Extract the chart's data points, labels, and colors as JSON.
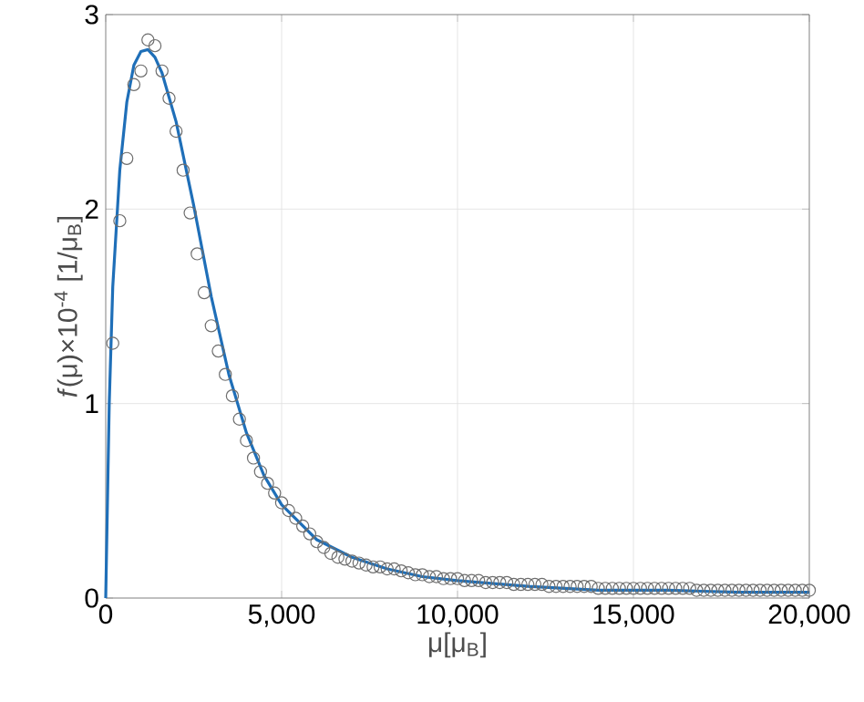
{
  "chart_data": {
    "type": "scatter",
    "xlabel": "μ[μ$_{B}$]",
    "ylabel": "*f*(μ)×10$^{-4}$ [1/μ$_{B}$]",
    "xlim": [
      0,
      20000
    ],
    "ylim": [
      0,
      3
    ],
    "xticks": [
      0,
      {
        "value": 5000,
        "label": "5,000"
      },
      {
        "value": 10000,
        "label": "10,000"
      },
      {
        "value": 15000,
        "label": "15,000"
      },
      {
        "value": 20000,
        "label": "20,000"
      }
    ],
    "yticks": [
      0,
      1,
      2,
      3
    ],
    "grid": true,
    "series": [
      {
        "marker": "circle",
        "color": "#6e6e6e",
        "x": [
          200,
          400,
          600,
          800,
          1000,
          1200,
          1400,
          1600,
          1800,
          2000,
          2200,
          2400,
          2600,
          2800,
          3000,
          3200,
          3400,
          3600,
          3800,
          4000,
          4200,
          4400,
          4600,
          4800,
          5000,
          5200,
          5400,
          5600,
          5800,
          6000,
          6200,
          6400,
          6600,
          6800,
          7000,
          7200,
          7400,
          7600,
          7800,
          8000,
          8200,
          8400,
          8600,
          8800,
          9000,
          9200,
          9400,
          9600,
          9800,
          10000,
          10200,
          10400,
          10600,
          10800,
          11000,
          11200,
          11400,
          11600,
          11800,
          12000,
          12200,
          12400,
          12600,
          12800,
          13000,
          13200,
          13400,
          13600,
          13800,
          14000,
          14200,
          14400,
          14600,
          14800,
          15000,
          15200,
          15400,
          15600,
          15800,
          16000,
          16200,
          16400,
          16600,
          16800,
          17000,
          17200,
          17400,
          17600,
          17800,
          18000,
          18200,
          18400,
          18600,
          18800,
          19000,
          19200,
          19400,
          19600,
          19800,
          20000
        ],
        "values": [
          1.31,
          1.94,
          2.26,
          2.64,
          2.71,
          2.87,
          2.84,
          2.71,
          2.57,
          2.4,
          2.2,
          1.98,
          1.77,
          1.57,
          1.4,
          1.27,
          1.15,
          1.04,
          0.92,
          0.81,
          0.72,
          0.65,
          0.59,
          0.54,
          0.49,
          0.45,
          0.41,
          0.37,
          0.33,
          0.29,
          0.26,
          0.23,
          0.21,
          0.2,
          0.19,
          0.18,
          0.17,
          0.16,
          0.16,
          0.15,
          0.15,
          0.14,
          0.13,
          0.12,
          0.12,
          0.11,
          0.11,
          0.1,
          0.1,
          0.1,
          0.09,
          0.09,
          0.09,
          0.08,
          0.08,
          0.08,
          0.08,
          0.07,
          0.07,
          0.07,
          0.07,
          0.07,
          0.06,
          0.06,
          0.06,
          0.06,
          0.06,
          0.06,
          0.06,
          0.05,
          0.05,
          0.05,
          0.05,
          0.05,
          0.05,
          0.05,
          0.05,
          0.05,
          0.05,
          0.05,
          0.05,
          0.05,
          0.05,
          0.04,
          0.04,
          0.04,
          0.04,
          0.04,
          0.04,
          0.04,
          0.04,
          0.04,
          0.04,
          0.04,
          0.04,
          0.04,
          0.04,
          0.04,
          0.04,
          0.04
        ]
      },
      {
        "type": "line",
        "marker": "none",
        "color": "#1f6fb8",
        "x": [
          0,
          100,
          200,
          400,
          600,
          800,
          1000,
          1200,
          1400,
          1600,
          2000,
          2500,
          3000,
          3500,
          4000,
          4500,
          5000,
          6000,
          7000,
          8000,
          9000,
          10000,
          12000,
          14000,
          16000,
          18000,
          20000
        ],
        "values": [
          0,
          1.0,
          1.6,
          2.2,
          2.55,
          2.74,
          2.81,
          2.82,
          2.78,
          2.7,
          2.45,
          2.02,
          1.55,
          1.15,
          0.85,
          0.63,
          0.48,
          0.3,
          0.21,
          0.15,
          0.11,
          0.09,
          0.06,
          0.04,
          0.04,
          0.03,
          0.03
        ]
      }
    ]
  }
}
